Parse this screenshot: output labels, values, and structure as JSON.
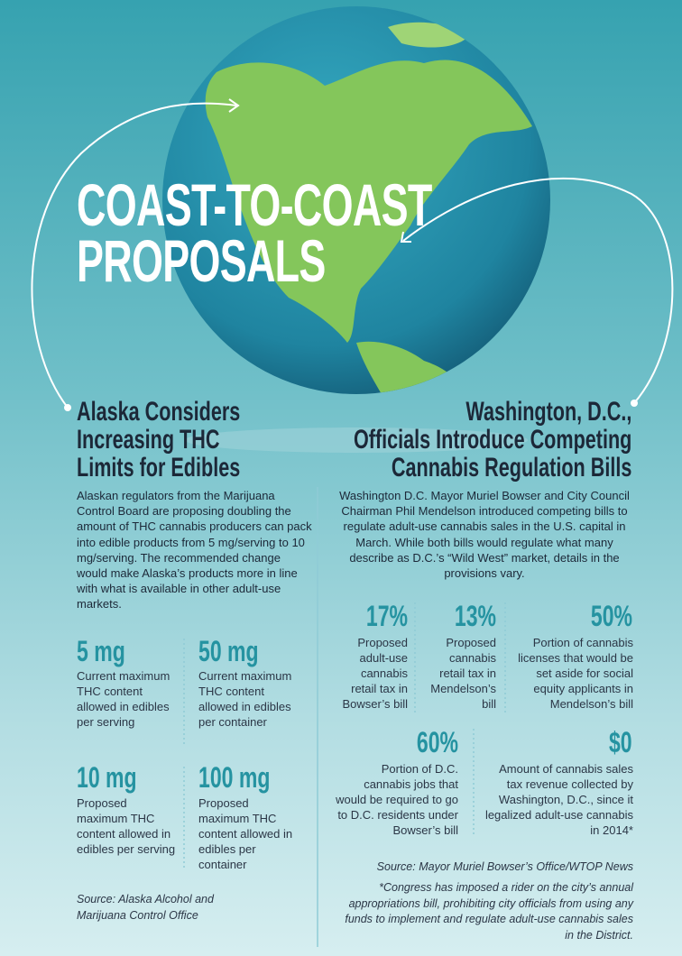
{
  "title": [
    "COAST-TO-COAST",
    "PROPOSALS"
  ],
  "alaska": {
    "heading": [
      "Alaska Considers",
      "Increasing THC",
      "Limits for Edibles"
    ],
    "body": "Alaskan regulators from the Marijuana Control Board are proposing doubling the amount of THC cannabis producers can pack into edible products from 5 mg/serving to 10 mg/serving. The recommended change would make Alaska’s products more in line with what is available in other adult-use markets.",
    "stats": [
      {
        "value": "5 mg",
        "label": "Current maximum THC content allowed in edibles per serving"
      },
      {
        "value": "50 mg",
        "label": "Current maximum THC content allowed in edibles per container"
      },
      {
        "value": "10 mg",
        "label": "Proposed maximum THC content allowed in edibles per serving"
      },
      {
        "value": "100 mg",
        "label": "Proposed maximum THC content allowed in edibles per container"
      }
    ],
    "source": "Source: Alaska Alcohol and Marijuana Control Office"
  },
  "dc": {
    "heading": [
      "Washington, D.C.,",
      "Officials Introduce Competing",
      "Cannabis Regulation Bills"
    ],
    "body": "Washington D.C. Mayor Muriel Bowser and City Council Chairman Phil Mendelson introduced competing bills to regulate adult-use cannabis sales in the U.S. capital in March. While both bills would regulate what many describe as D.C.’s “Wild West” market, details in the provisions vary.",
    "stats": [
      {
        "value": "17%",
        "label": "Proposed adult-use cannabis retail tax in Bowser’s bill"
      },
      {
        "value": "13%",
        "label": "Proposed cannabis retail tax in Mendelson’s bill"
      },
      {
        "value": "50%",
        "label": "Portion of cannabis licenses that would be set aside for social equity applicants in Mendelson’s bill"
      },
      {
        "value": "60%",
        "label": "Portion of D.C. cannabis jobs that would be required to go to D.C. residents under Bowser’s bill"
      },
      {
        "value": "$0",
        "label": "Amount of cannabis sales tax revenue collected by Washington, D.C., since it legalized adult-use cannabis in 2014*"
      }
    ],
    "source": "Source: Mayor Muriel Bowser’s Office/WTOP News",
    "footnote": "*Congress has imposed a rider on the city’s annual appropriations bill, prohibiting city officials from using any funds to implement and regulate adult-use cannabis sales in the District."
  }
}
